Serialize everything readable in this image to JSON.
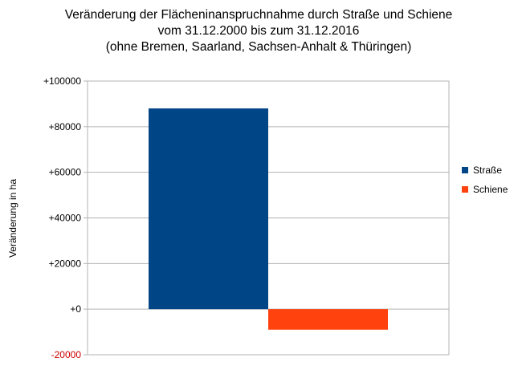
{
  "chart_data": {
    "type": "bar",
    "title": [
      "Veränderung der Flächeninanspruchnahme durch Straße und Schiene",
      "vom 31.12.2000 bis zum 31.12.2016",
      "(ohne Bremen, Saarland, Sachsen-Anhalt & Thüringen)"
    ],
    "xlabel": "",
    "ylabel": "Veränderung in ha",
    "ylim": [
      -20000,
      100000
    ],
    "yticks": [
      -20000,
      0,
      20000,
      40000,
      60000,
      80000,
      100000
    ],
    "ytick_labels": [
      "-20000",
      "+0",
      "+20000",
      "+40000",
      "+60000",
      "+80000",
      "+100000"
    ],
    "negative_tick_color": "#cc0000",
    "grid": true,
    "legend": "right",
    "series": [
      {
        "name": "Straße",
        "value": 88000,
        "color": "#004586"
      },
      {
        "name": "Schiene",
        "value": -9000,
        "color": "#ff420e"
      }
    ]
  }
}
